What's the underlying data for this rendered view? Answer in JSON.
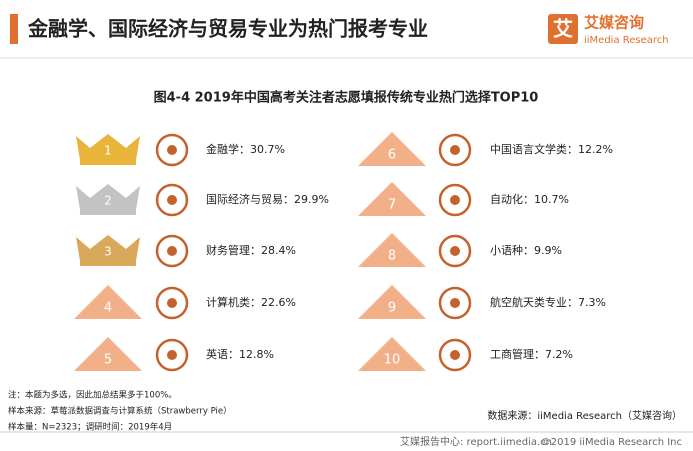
{
  "header": {
    "title": "金融学、国际经济与贸易专业为热门报考专业"
  },
  "logo": {
    "mark": "艾",
    "name": "艾媒咨询",
    "sub": "iiMedia Research"
  },
  "subtitle": "图4-4 2019年中国高考关注者志愿填报传统专业热门选择TOP10",
  "items": [
    {
      "rank": "1",
      "label": "金融学：30.7%"
    },
    {
      "rank": "2",
      "label": "国际经济与贸易：29.9%"
    },
    {
      "rank": "3",
      "label": "财务管理：28.4%"
    },
    {
      "rank": "4",
      "label": "计算机类：22.6%"
    },
    {
      "rank": "5",
      "label": "英语：12.8%"
    },
    {
      "rank": "6",
      "label": "中国语言文学类：12.2%"
    },
    {
      "rank": "7",
      "label": "自动化：10.7%"
    },
    {
      "rank": "8",
      "label": "小语种：9.9%"
    },
    {
      "rank": "9",
      "label": "航空航天类专业：7.3%"
    },
    {
      "rank": "10",
      "label": "工商管理：7.2%"
    }
  ],
  "notes": [
    "注：本题为多选，因此加总结果多于100%。",
    "样本来源：草莓派数据调查与计算系统（Strawberry Pie）",
    "样本量：N=2323；调研时间：2019年4月"
  ],
  "source": "数据来源：iiMedia Research（艾媒咨询）",
  "footer": {
    "left": "艾媒报告中心: report.iimedia.cn",
    "right": "©2019  iiMedia Research  Inc"
  }
}
